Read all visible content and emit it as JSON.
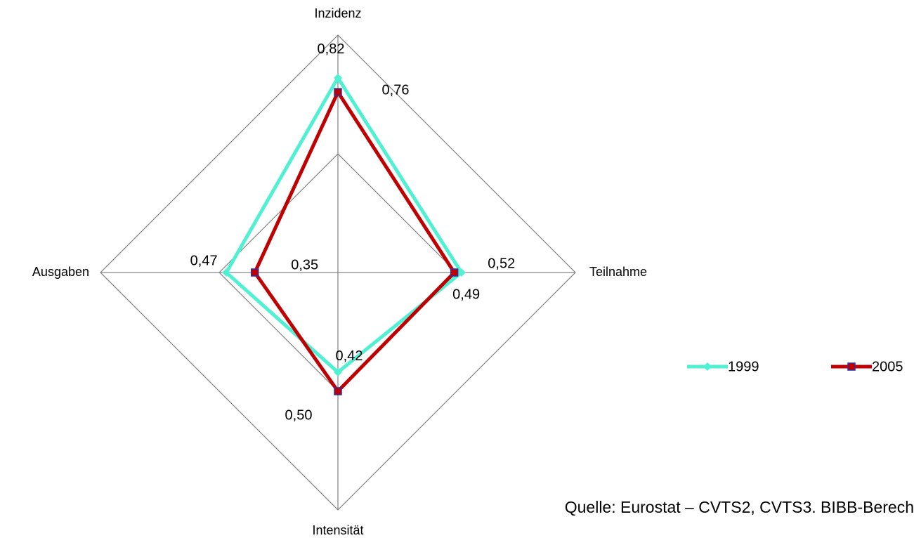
{
  "chart_data": {
    "type": "radar",
    "categories": [
      "Inzidenz",
      "Teilnahme",
      "Intensität",
      "Ausgaben"
    ],
    "series": [
      {
        "name": "1999",
        "color": "#50f0d2",
        "values": [
          0.82,
          0.52,
          0.42,
          0.47
        ],
        "value_labels": [
          "0,82",
          "0,52",
          "0,42",
          "0,47"
        ]
      },
      {
        "name": "2005",
        "color": "#c00000",
        "values": [
          0.76,
          0.49,
          0.5,
          0.35
        ],
        "value_labels": [
          "0,76",
          "0,49",
          "0,50",
          "0,35"
        ]
      }
    ],
    "rlim": [
      0,
      1
    ],
    "rticks": [
      0.5,
      1
    ],
    "grid": true,
    "legend": "right",
    "source": "Quelle: Eurostat – CVTS2, CVTS3. BIBB-Berech"
  }
}
